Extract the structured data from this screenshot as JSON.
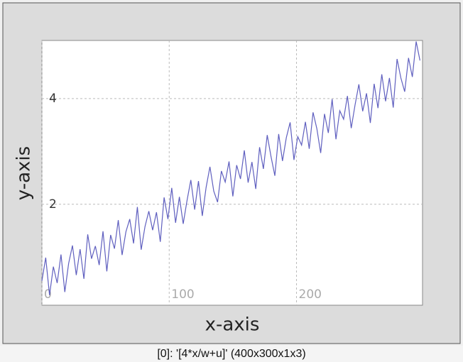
{
  "chart_data": {
    "type": "line",
    "x": [
      0,
      3,
      6,
      9,
      12,
      15,
      18,
      21,
      24,
      27,
      30,
      33,
      36,
      39,
      42,
      45,
      48,
      51,
      54,
      57,
      60,
      63,
      66,
      69,
      72,
      75,
      78,
      81,
      84,
      87,
      90,
      93,
      96,
      99,
      102,
      105,
      108,
      111,
      114,
      117,
      120,
      123,
      126,
      129,
      132,
      135,
      138,
      141,
      144,
      147,
      150,
      153,
      156,
      159,
      162,
      165,
      168,
      171,
      174,
      177,
      180,
      183,
      186,
      189,
      192,
      195,
      198,
      201,
      204,
      207,
      210,
      213,
      216,
      219,
      222,
      225,
      228,
      231,
      234,
      237,
      240,
      243,
      246,
      249,
      252,
      255,
      258,
      261,
      264,
      267,
      270,
      273,
      276,
      279,
      282,
      285,
      288,
      291,
      294,
      297
    ],
    "values": [
      0.55,
      0.99,
      0.28,
      0.82,
      0.51,
      1.05,
      0.34,
      0.88,
      1.22,
      0.66,
      1.15,
      0.59,
      1.43,
      0.97,
      1.21,
      0.85,
      1.49,
      0.73,
      1.42,
      1.16,
      1.7,
      1.04,
      1.48,
      1.72,
      1.26,
      1.95,
      1.14,
      1.58,
      1.87,
      1.51,
      1.85,
      1.29,
      2.13,
      1.72,
      2.31,
      1.65,
      2.14,
      1.63,
      2.07,
      2.46,
      1.9,
      2.44,
      1.78,
      2.32,
      2.71,
      2.25,
      2.04,
      2.63,
      2.42,
      2.81,
      2.15,
      2.74,
      2.48,
      3.02,
      2.41,
      2.8,
      2.29,
      3.08,
      2.67,
      3.31,
      2.9,
      2.54,
      3.33,
      2.82,
      3.26,
      3.55,
      2.84,
      3.28,
      3.12,
      3.56,
      3.05,
      3.74,
      3.43,
      2.97,
      3.71,
      3.35,
      3.99,
      3.23,
      3.77,
      3.61,
      4.05,
      3.44,
      3.88,
      4.27,
      3.76,
      4.1,
      3.54,
      4.28,
      3.82,
      4.46,
      3.95,
      4.39,
      3.83,
      4.75,
      4.39,
      4.13,
      4.77,
      4.41,
      5.08,
      4.72
    ],
    "color": "#5f5fbf",
    "xlabel": "x-axis",
    "ylabel": "y-axis",
    "xlim": [
      0,
      299
    ],
    "ylim": [
      0.09,
      5.1
    ],
    "xticks": [
      0,
      100,
      200
    ],
    "yticks": [
      2,
      4
    ],
    "grid": true
  },
  "status": "[0]: '[4*x/w+u]' (400x300x1x3)"
}
